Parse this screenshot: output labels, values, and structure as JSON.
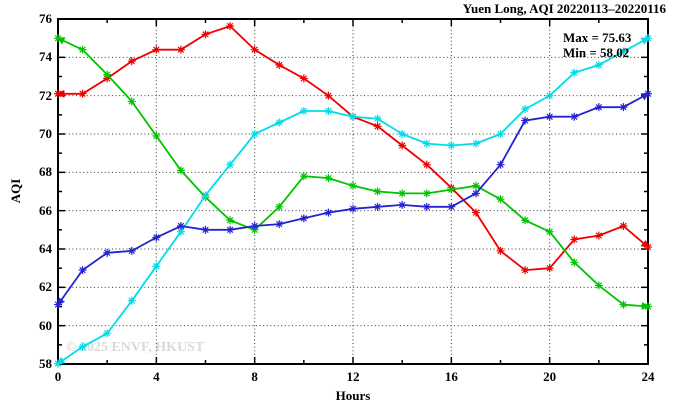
{
  "title": "Yuen Long, AQI 20220113–20220116",
  "watermark": "© 2025 ENVF, HKUST",
  "annotation": {
    "max_label": "Max = 75.63",
    "min_label": "Min = 58.02"
  },
  "chart_data": {
    "type": "line",
    "title": "Yuen Long, AQI 20220113–20220116",
    "xlabel": "Hours",
    "ylabel": "AQI",
    "xlim": [
      0,
      24
    ],
    "ylim": [
      58,
      76
    ],
    "x_major_ticks": [
      0,
      4,
      8,
      12,
      16,
      20,
      24
    ],
    "x_minor_ticks": [
      2,
      6,
      10,
      14,
      18,
      22
    ],
    "y_major_ticks": [
      58,
      60,
      62,
      64,
      66,
      68,
      70,
      72,
      74,
      76
    ],
    "y_minor_ticks": [
      59,
      61,
      63,
      65,
      67,
      69,
      71,
      73,
      75
    ],
    "grid": true,
    "legend": "none",
    "marker": "asterisk",
    "line_end_arrows": true,
    "x": [
      0,
      1,
      2,
      3,
      4,
      5,
      6,
      7,
      8,
      9,
      10,
      11,
      12,
      13,
      14,
      15,
      16,
      17,
      18,
      19,
      20,
      21,
      22,
      23,
      24
    ],
    "series": [
      {
        "name": "red",
        "color": "#ee0000",
        "values": [
          72.1,
          72.1,
          72.9,
          73.8,
          74.4,
          74.4,
          75.2,
          75.63,
          74.4,
          73.6,
          72.9,
          72.0,
          70.9,
          70.4,
          69.4,
          68.4,
          67.2,
          65.9,
          63.9,
          62.9,
          63.0,
          64.5,
          64.7,
          65.2,
          64.1
        ]
      },
      {
        "name": "green",
        "color": "#00c400",
        "values": [
          75.0,
          74.4,
          73.1,
          71.7,
          69.9,
          68.1,
          66.7,
          65.5,
          65.0,
          66.2,
          67.8,
          67.7,
          67.3,
          67.0,
          66.9,
          66.9,
          67.1,
          67.3,
          66.6,
          65.5,
          64.9,
          63.3,
          62.1,
          61.1,
          61.0
        ]
      },
      {
        "name": "cyan",
        "color": "#00dce8",
        "values": [
          58.02,
          58.9,
          59.6,
          61.3,
          63.1,
          64.9,
          66.8,
          68.4,
          70.0,
          70.6,
          71.2,
          71.2,
          70.9,
          70.8,
          70.0,
          69.5,
          69.4,
          69.5,
          70.0,
          71.3,
          72.0,
          73.2,
          73.6,
          74.3,
          75.0
        ]
      },
      {
        "name": "blue",
        "color": "#2323cf",
        "values": [
          61.1,
          62.9,
          63.8,
          63.9,
          64.6,
          65.2,
          65.0,
          65.0,
          65.2,
          65.3,
          65.6,
          65.9,
          66.1,
          66.2,
          66.3,
          66.2,
          66.2,
          66.9,
          68.4,
          70.7,
          70.9,
          70.9,
          71.4,
          71.4,
          72.1
        ]
      }
    ],
    "stats": {
      "max": 75.63,
      "min": 58.02
    }
  }
}
